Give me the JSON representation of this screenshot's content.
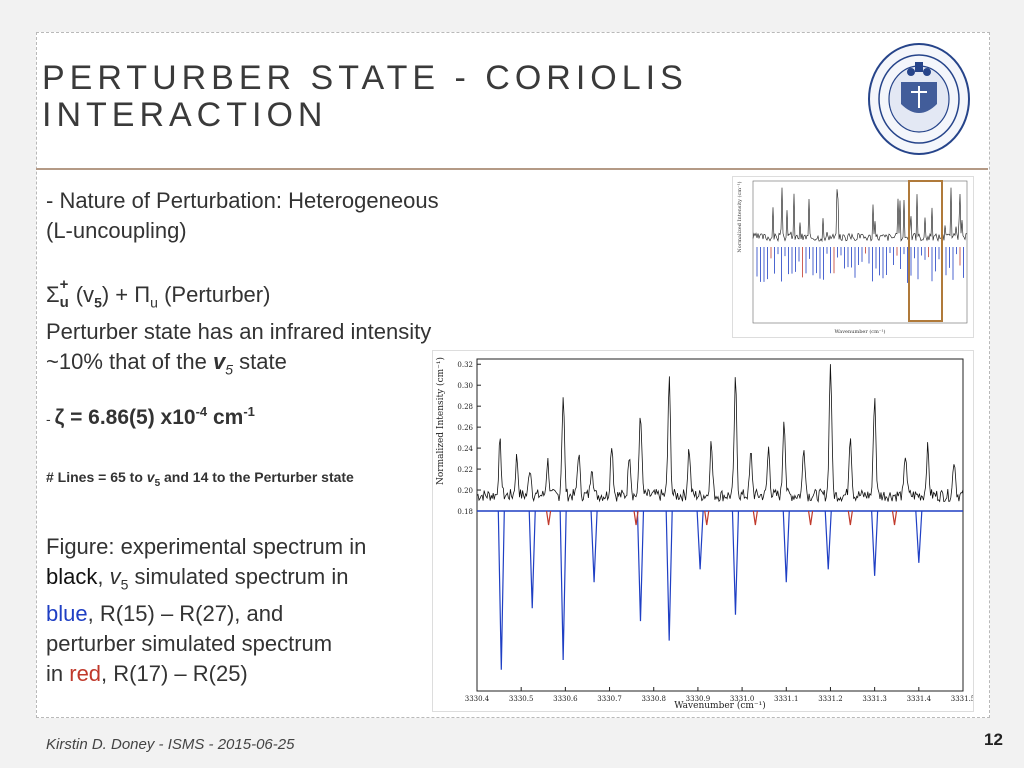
{
  "slide": {
    "title_line1": "PERTURBER STATE - CORIOLIS",
    "title_line2": "INTERACTION",
    "footer": "Kirstin D. Doney - ISMS - 2015-06-25",
    "page_number": "12"
  },
  "bullets": {
    "nature_line1": "- Nature of Perturbation: Heterogeneous",
    "nature_line2": "(L-uncoupling)",
    "sigma": "Σ",
    "sigma_sup": "+",
    "sigma_sub": "u",
    "nu5_open": "(v",
    "nu5_sub": "5",
    "nu5_close": ") + Π",
    "pi_sub": "u",
    "perturber_label": "(Perturber)",
    "intensity_line1": "Perturber state has an infrared intensity",
    "intensity_line2_a": "~10%  that of the ",
    "intensity_line2_v": "v",
    "intensity_line2_sub": "5",
    "intensity_line2_b": " state",
    "zeta_prefix": "- ",
    "zeta_main": "ζ = 6.86(5) x10",
    "zeta_exp": "-4",
    "zeta_unit": " cm",
    "zeta_unit_exp": "-1",
    "lines_a": "# Lines = 65 to ",
    "lines_v": "v",
    "lines_sub": "5",
    "lines_b": " and 14 to the Perturber state"
  },
  "caption": {
    "part1": "Figure: experimental spectrum in",
    "black_word": "black",
    "part2": ", ",
    "v": "v",
    "v_sub": "5",
    "part3": " simulated spectrum in",
    "blue_word": "blue",
    "part4": ", R(15) – R(27), and",
    "part5": "perturber simulated spectrum",
    "part6": "in ",
    "red_word": "red",
    "part7": ", R(17) – R(25)"
  },
  "colors": {
    "experimental": "#111111",
    "v5_sim": "#1f3fc4",
    "perturber_sim": "#c0392b",
    "highlight_box": "#b07a3a",
    "rule": "#b49a86"
  },
  "chart_data": [
    {
      "type": "line",
      "xlabel": "Wavenumber (cm⁻¹)",
      "ylabel": "Normalized Intensity (cm⁻¹)",
      "x_ticks": [
        "3330.4",
        "3330.5",
        "3330.6",
        "3330.7",
        "3330.8",
        "3330.9",
        "3331.0",
        "3331.1",
        "3331.2",
        "3331.3",
        "3331.4",
        "3331.5"
      ],
      "y_ticks": [
        "0.32",
        "0.30",
        "0.28",
        "0.26",
        "0.24",
        "0.22",
        "0.20",
        "0.18"
      ],
      "xlim": [
        3330.4,
        3331.5
      ],
      "ylim": [
        0.18,
        0.325
      ],
      "series": [
        {
          "kind": "experimental",
          "peaks": [
            [
              3330.452,
              0.245
            ],
            [
              3330.49,
              0.232
            ],
            [
              3330.52,
              0.222
            ],
            [
              3330.56,
              0.228
            ],
            [
              3330.595,
              0.29
            ],
            [
              3330.63,
              0.235
            ],
            [
              3330.66,
              0.225
            ],
            [
              3330.705,
              0.245
            ],
            [
              3330.745,
              0.237
            ],
            [
              3330.77,
              0.275
            ],
            [
              3330.835,
              0.305
            ],
            [
              3330.88,
              0.24
            ],
            [
              3330.93,
              0.245
            ],
            [
              3330.985,
              0.305
            ],
            [
              3331.02,
              0.235
            ],
            [
              3331.06,
              0.24
            ],
            [
              3331.095,
              0.27
            ],
            [
              3331.14,
              0.243
            ],
            [
              3331.2,
              0.322
            ],
            [
              3331.245,
              0.255
            ],
            [
              3331.3,
              0.29
            ],
            [
              3331.37,
              0.235
            ],
            [
              3331.42,
              0.24
            ],
            [
              3331.48,
              0.23
            ]
          ]
        },
        {
          "kind": "v5_sim",
          "peaks": [
            [
              3330.455,
              -0.245
            ],
            [
              3330.525,
              -0.15
            ],
            [
              3330.595,
              -0.23
            ],
            [
              3330.665,
              -0.11
            ],
            [
              3330.77,
              -0.17
            ],
            [
              3330.835,
              -0.2
            ],
            [
              3330.905,
              -0.09
            ],
            [
              3330.985,
              -0.16
            ],
            [
              3331.1,
              -0.11
            ],
            [
              3331.195,
              -0.09
            ],
            [
              3331.3,
              -0.1
            ],
            [
              3331.4,
              -0.08
            ]
          ]
        },
        {
          "kind": "perturber_sim",
          "peaks": [
            [
              3330.562,
              -0.012
            ],
            [
              3330.76,
              -0.02
            ],
            [
              3330.92,
              -0.018
            ],
            [
              3331.03,
              -0.012
            ],
            [
              3331.155,
              -0.015
            ],
            [
              3331.245,
              -0.02
            ],
            [
              3331.345,
              -0.012
            ]
          ]
        }
      ]
    },
    {
      "type": "line",
      "xlabel": "Wavenumber (cm⁻¹)",
      "ylabel": "Normalized Intensity (cm⁻¹)"
    }
  ]
}
